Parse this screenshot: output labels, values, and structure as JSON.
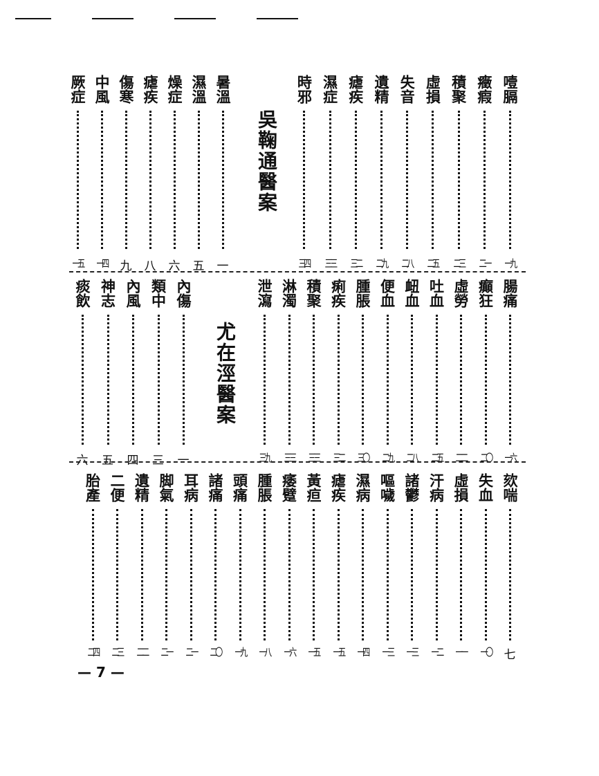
{
  "page_number": "— 7 —",
  "bands": [
    {
      "right": [
        {
          "title": "噎膈",
          "page": "一九"
        },
        {
          "title": "癥瘕",
          "page": "二一"
        },
        {
          "title": "積聚",
          "page": "二三"
        },
        {
          "title": "虛損",
          "page": "二五"
        },
        {
          "title": "失音",
          "page": "二八"
        },
        {
          "title": "遺精",
          "page": "二九"
        },
        {
          "title": "瘧疾",
          "page": "三二"
        },
        {
          "title": "濕症",
          "page": "三三"
        },
        {
          "title": "時邪",
          "page": "三四"
        }
      ],
      "section_title": "吳鞠通醫案",
      "left": [
        {
          "title": "暑溫",
          "page": "一"
        },
        {
          "title": "濕溫",
          "page": "五"
        },
        {
          "title": "燥症",
          "page": "六"
        },
        {
          "title": "瘧疾",
          "page": "八"
        },
        {
          "title": "傷寒",
          "page": "九"
        },
        {
          "title": "中風",
          "page": "一四"
        },
        {
          "title": "厥症",
          "page": "一五"
        }
      ]
    },
    {
      "right": [
        {
          "title": "腸痛",
          "page": "一六"
        },
        {
          "title": "癲狂",
          "page": "二〇"
        },
        {
          "title": "虛勞",
          "page": "二二"
        },
        {
          "title": "吐血",
          "page": "二五"
        },
        {
          "title": "衄血",
          "page": "二八"
        },
        {
          "title": "便血",
          "page": "二九"
        },
        {
          "title": "腫脹",
          "page": "三〇"
        },
        {
          "title": "痢疾",
          "page": "三二"
        },
        {
          "title": "積聚",
          "page": "三三"
        },
        {
          "title": "淋濁",
          "page": "三三"
        },
        {
          "title": "泄瀉",
          "page": "三九"
        }
      ],
      "section_title": "尤在涇醫案",
      "left": [
        {
          "title": "內傷",
          "page": "一"
        },
        {
          "title": "類中",
          "page": "三"
        },
        {
          "title": "內風",
          "page": "四"
        },
        {
          "title": "神志",
          "page": "五"
        },
        {
          "title": "痰飲",
          "page": "六"
        }
      ]
    },
    {
      "right": [
        {
          "title": "欬喘",
          "page": "七"
        },
        {
          "title": "失血",
          "page": "一〇"
        },
        {
          "title": "虛損",
          "page": "一一"
        },
        {
          "title": "汗病",
          "page": "一二"
        },
        {
          "title": "諸鬱",
          "page": "一三"
        },
        {
          "title": "嘔噦",
          "page": "一三"
        },
        {
          "title": "濕病",
          "page": "一四"
        },
        {
          "title": "瘧疾",
          "page": "一五"
        },
        {
          "title": "黃疸",
          "page": "一五"
        },
        {
          "title": "痿躄",
          "page": "一六"
        },
        {
          "title": "腫脹",
          "page": "一八"
        },
        {
          "title": "頭痛",
          "page": "一九"
        },
        {
          "title": "諸痛",
          "page": "二〇"
        },
        {
          "title": "耳病",
          "page": "二一"
        },
        {
          "title": "脚氣",
          "page": "二一"
        },
        {
          "title": "遺精",
          "page": "二二"
        },
        {
          "title": "二便",
          "page": "二三"
        },
        {
          "title": "胎產",
          "page": "二四"
        }
      ],
      "section_title": "",
      "left": []
    }
  ]
}
